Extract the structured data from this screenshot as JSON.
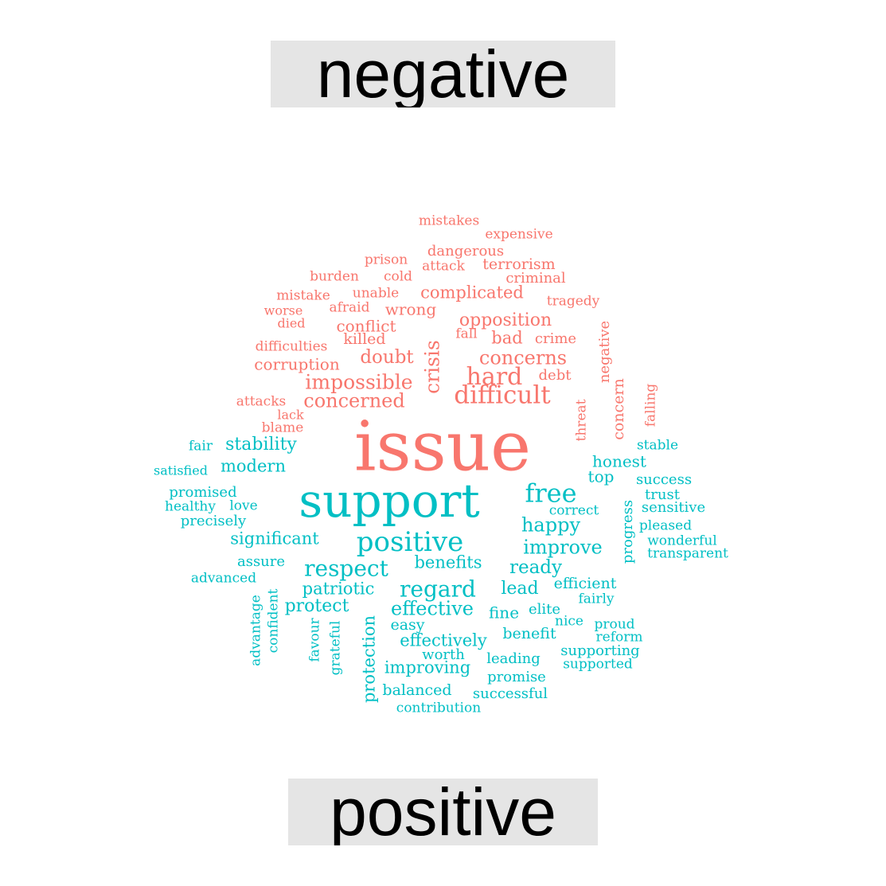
{
  "labels": {
    "top": "negative",
    "bottom": "positive"
  },
  "colors": {
    "negative": "#f8766d",
    "positive": "#00bfc4",
    "strip": "#e5e5e5"
  },
  "negative_words": [
    "mistakes",
    "expensive",
    "dangerous",
    "prison",
    "attack",
    "terrorism",
    "burden",
    "cold",
    "criminal",
    "unable",
    "complicated",
    "mistake",
    "tragedy",
    "afraid",
    "worse",
    "wrong",
    "died",
    "opposition",
    "conflict",
    "fall",
    "bad",
    "crime",
    "killed",
    "difficulties",
    "crisis",
    "negative",
    "doubt",
    "concerns",
    "corruption",
    "hard",
    "debt",
    "impossible",
    "concern",
    "falling",
    "difficult",
    "attacks",
    "concerned",
    "threat",
    "lack",
    "blame",
    "issue"
  ],
  "positive_words": [
    "fair",
    "stability",
    "stable",
    "modern",
    "honest",
    "satisfied",
    "top",
    "success",
    "support",
    "free",
    "promised",
    "trust",
    "healthy",
    "love",
    "correct",
    "sensitive",
    "precisely",
    "happy",
    "progress",
    "pleased",
    "significant",
    "positive",
    "wonderful",
    "improve",
    "transparent",
    "assure",
    "benefits",
    "respect",
    "ready",
    "advanced",
    "efficient",
    "patriotic",
    "regard",
    "lead",
    "fairly",
    "advantage",
    "confident",
    "protect",
    "effective",
    "elite",
    "fine",
    "nice",
    "proud",
    "easy",
    "favour",
    "benefit",
    "reform",
    "grateful",
    "effectively",
    "protection",
    "supporting",
    "worth",
    "leading",
    "supported",
    "improving",
    "promise",
    "balanced",
    "successful",
    "contribution"
  ]
}
